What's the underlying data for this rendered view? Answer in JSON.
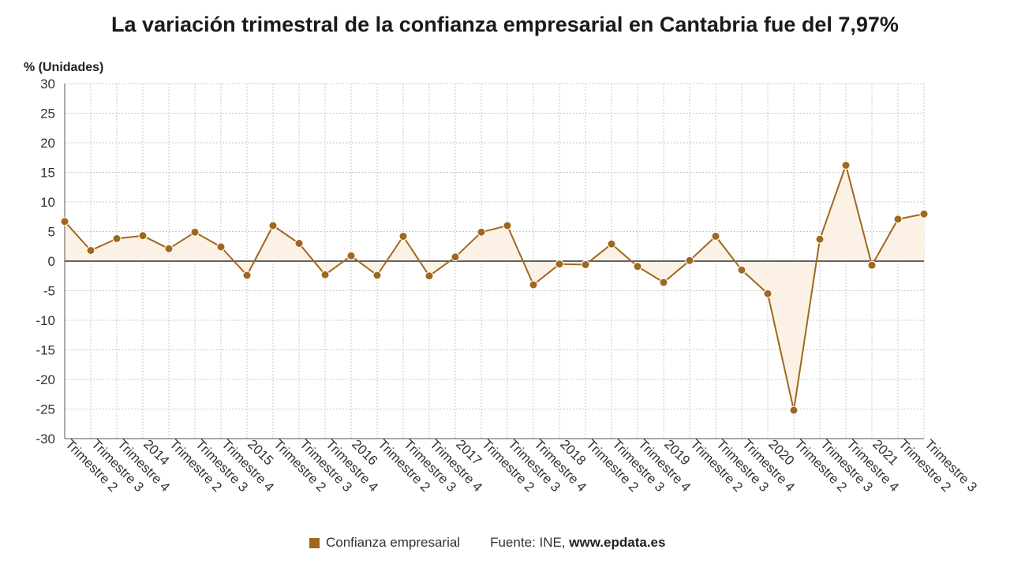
{
  "colors": {
    "series": "#a0671f",
    "area": "#fbf1e4",
    "grid": "#c8c8c8",
    "zero_line": "#333333"
  },
  "legend": {
    "series_label": "Confianza empresarial",
    "source_prefix": "Fuente: INE,",
    "source_site": "www.epdata.es"
  },
  "chart_data": {
    "type": "line",
    "title": "La variación trimestral de la confianza empresarial en Cantabria fue del 7,97%",
    "ylabel": "% (Unidades)",
    "xlabel": "",
    "ylim": [
      -30,
      30
    ],
    "yticks": [
      30,
      25,
      20,
      15,
      10,
      5,
      0,
      -5,
      -10,
      -15,
      -20,
      -25,
      -30
    ],
    "grid": true,
    "area_fill": true,
    "legend_position": "bottom",
    "categories": [
      "Trimestre 2",
      "Trimestre 3",
      "Trimestre 4",
      "2014",
      "Trimestre 2",
      "Trimestre 3",
      "Trimestre 4",
      "2015",
      "Trimestre 2",
      "Trimestre 3",
      "Trimestre 4",
      "2016",
      "Trimestre 2",
      "Trimestre 3",
      "Trimestre 4",
      "2017",
      "Trimestre 2",
      "Trimestre 3",
      "Trimestre 4",
      "2018",
      "Trimestre 2",
      "Trimestre 3",
      "Trimestre 4",
      "2019",
      "Trimestre 2",
      "Trimestre 3",
      "Trimestre 4",
      "2020",
      "Trimestre 2",
      "Trimestre 3",
      "Trimestre 4",
      "2021",
      "Trimestre 2",
      "Trimestre 3"
    ],
    "series": [
      {
        "name": "Confianza empresarial",
        "values": [
          6.7,
          1.8,
          3.8,
          4.3,
          2.1,
          4.9,
          2.4,
          -2.4,
          6.0,
          3.0,
          -2.3,
          0.9,
          -2.4,
          4.2,
          -2.5,
          0.7,
          4.9,
          6.0,
          -4.0,
          -0.5,
          -0.6,
          2.9,
          -0.9,
          -3.6,
          0.1,
          4.2,
          -1.5,
          -5.5,
          -25.2,
          3.7,
          16.2,
          -0.7,
          7.1,
          7.97
        ]
      }
    ]
  }
}
